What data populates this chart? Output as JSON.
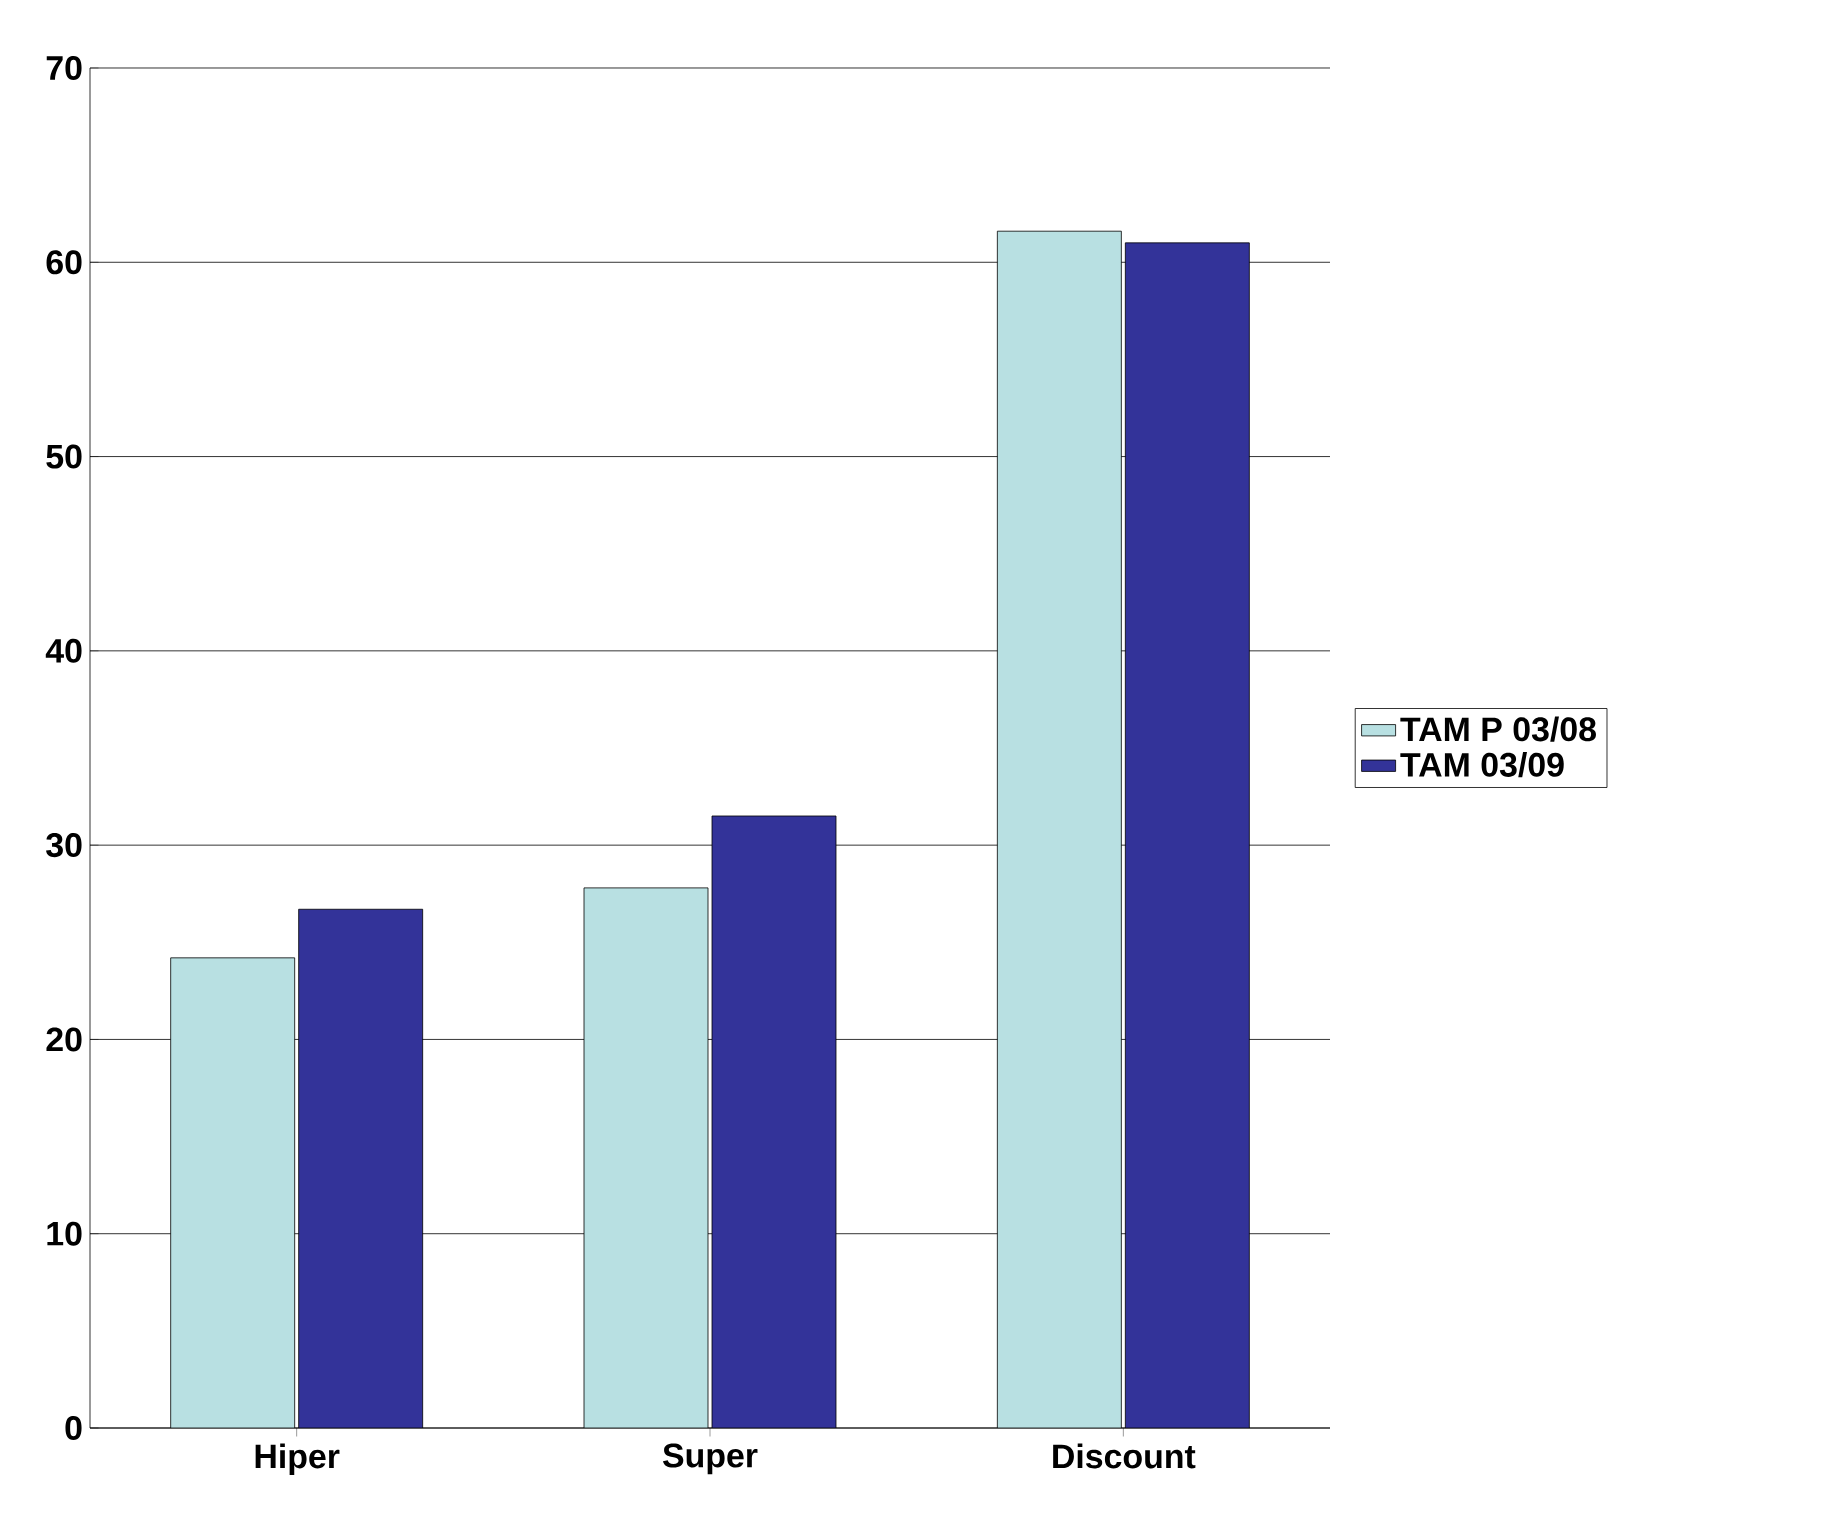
{
  "chart_data": {
    "type": "bar",
    "categories": [
      "Hiper",
      "Super",
      "Discount"
    ],
    "series": [
      {
        "name": "TAM P 03/08",
        "color": "#b8e0e2",
        "values": [
          24.2,
          27.8,
          61.6
        ]
      },
      {
        "name": "TAM 03/09",
        "color": "#333399",
        "values": [
          26.7,
          31.5,
          61.0
        ]
      }
    ],
    "ylim": [
      0,
      70
    ],
    "yticks": [
      0,
      10,
      20,
      30,
      40,
      50,
      60,
      70
    ],
    "grid": "y",
    "legend": "right"
  }
}
